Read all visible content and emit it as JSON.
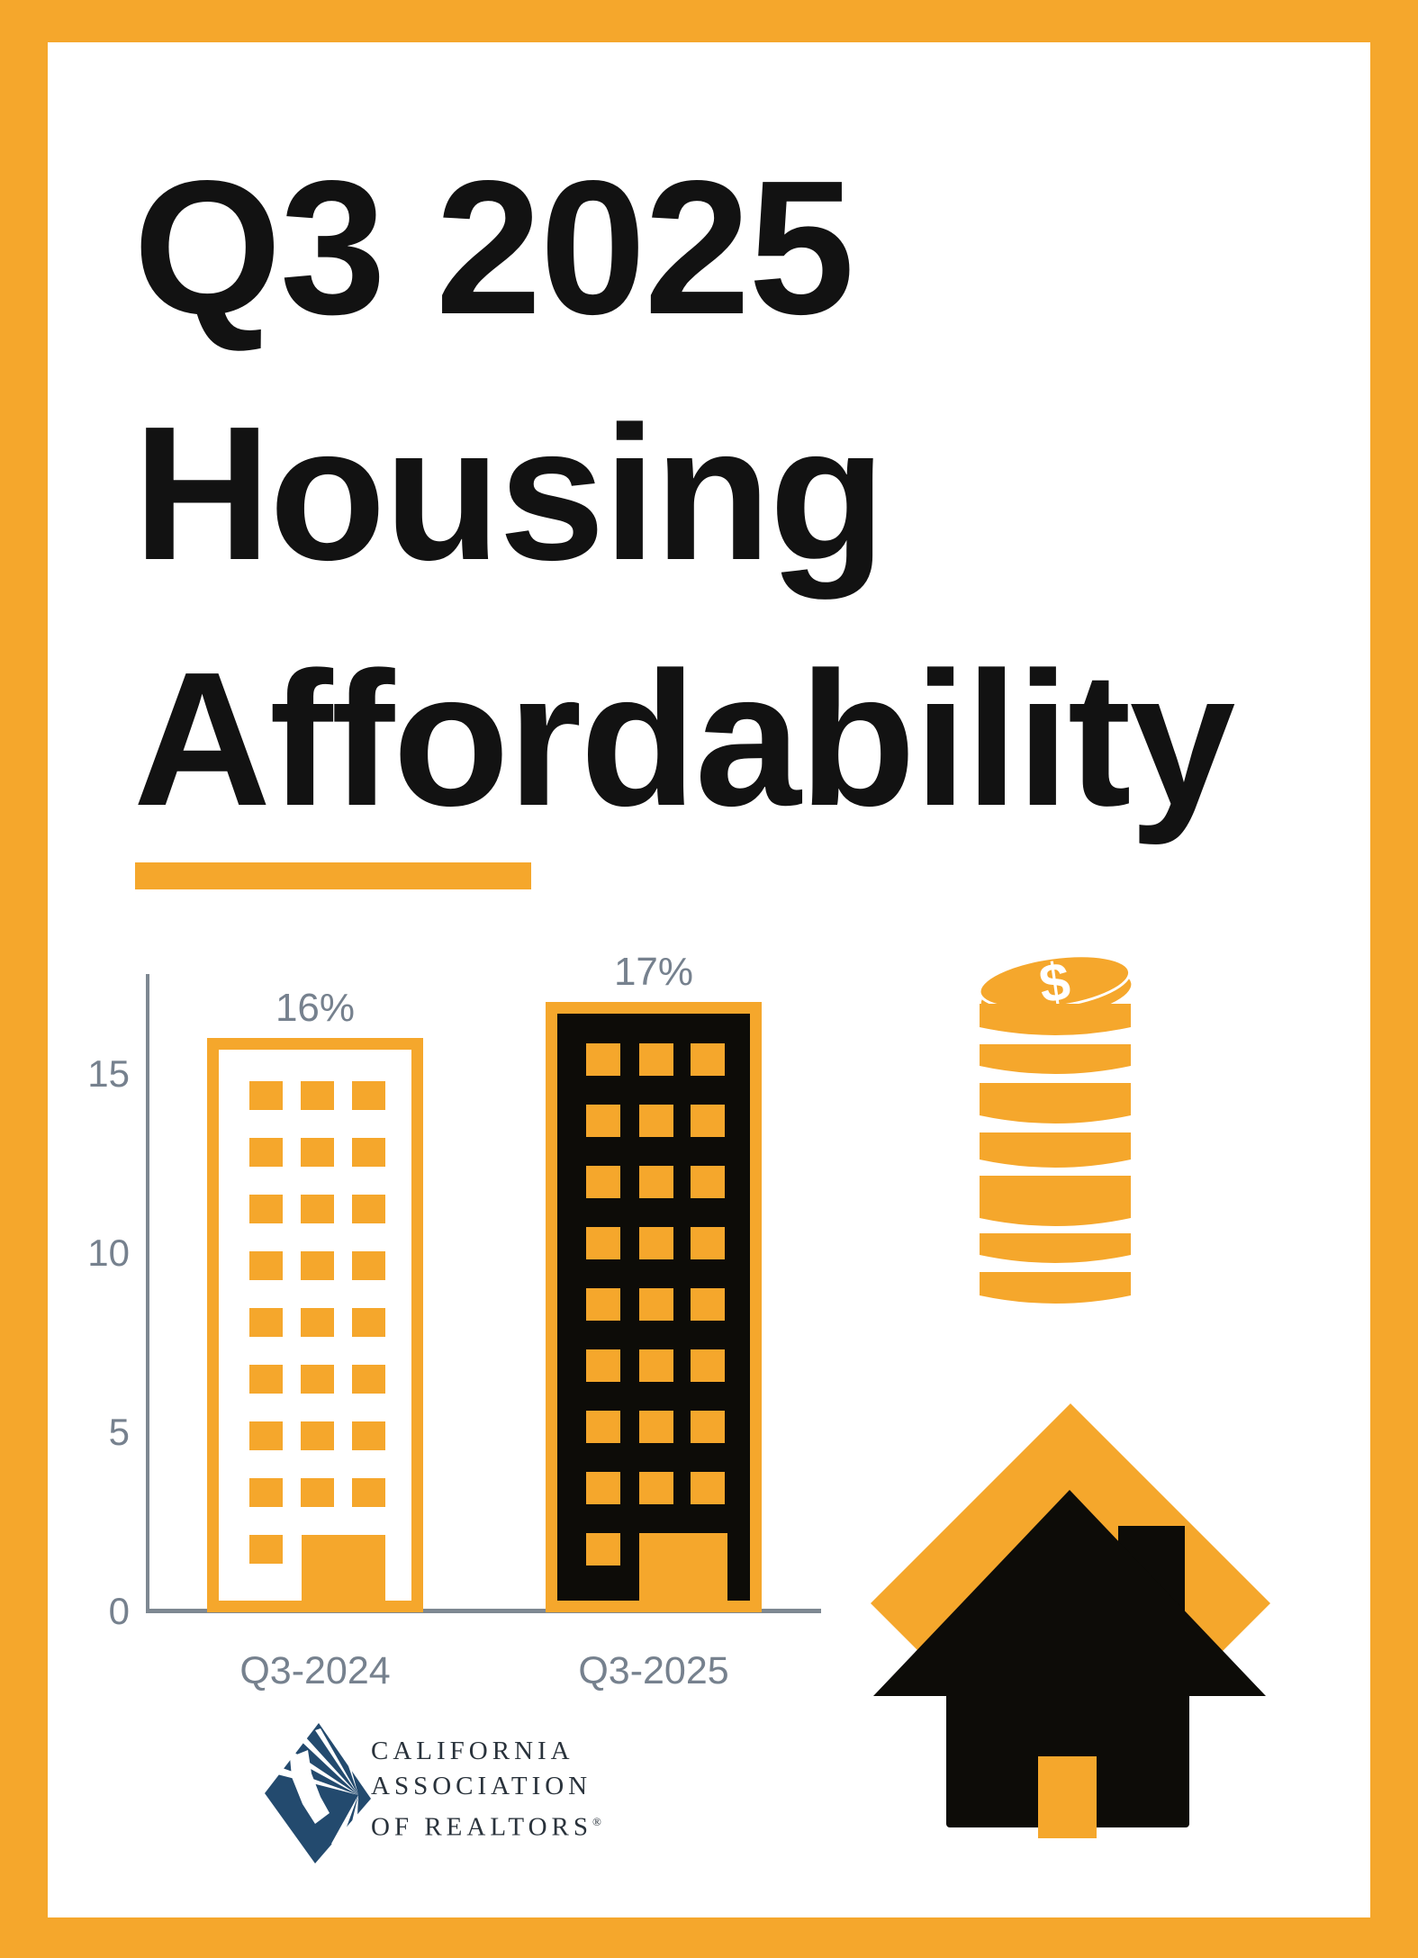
{
  "title": {
    "lines": [
      "Q3 2025",
      "Housing",
      "Affordability"
    ]
  },
  "chart_data": {
    "type": "bar",
    "title": "Q3 2025 Housing Affordability",
    "categories": [
      "Q3-2024",
      "Q3-2025"
    ],
    "values": [
      16,
      17
    ],
    "value_labels": [
      "16%",
      "17%"
    ],
    "unit": "percent",
    "yticks": [
      15,
      10,
      5,
      0
    ],
    "ylim": [
      0,
      17.5
    ],
    "xlabel": "",
    "ylabel": "",
    "grid": false,
    "legend": false,
    "bar_style": "building-pictogram",
    "bars": [
      {
        "category": "Q3-2024",
        "value": 16,
        "label": "16%",
        "fill": "#FFFFFF",
        "outline": "#F5A72C"
      },
      {
        "category": "Q3-2025",
        "value": 17,
        "label": "17%",
        "fill": "#0D0C08",
        "outline": "#F5A72C"
      }
    ],
    "pictogram": {
      "rows": 9,
      "cols": 3
    }
  },
  "icons": {
    "coin_stack": {
      "symbol": "$"
    },
    "house": {
      "style": "black house with chimney on orange diamond"
    }
  },
  "logo": {
    "lines": [
      "CALIFORNIA",
      "ASSOCIATION",
      "OF REALTORS"
    ],
    "registered": "®"
  },
  "colors": {
    "accent_orange": "#F5A72C",
    "text_gray": "#76818E",
    "axis_gray": "#7E8892",
    "building_black": "#0D0C08",
    "logo_navy": "#234A6E",
    "title_black": "#121212"
  }
}
